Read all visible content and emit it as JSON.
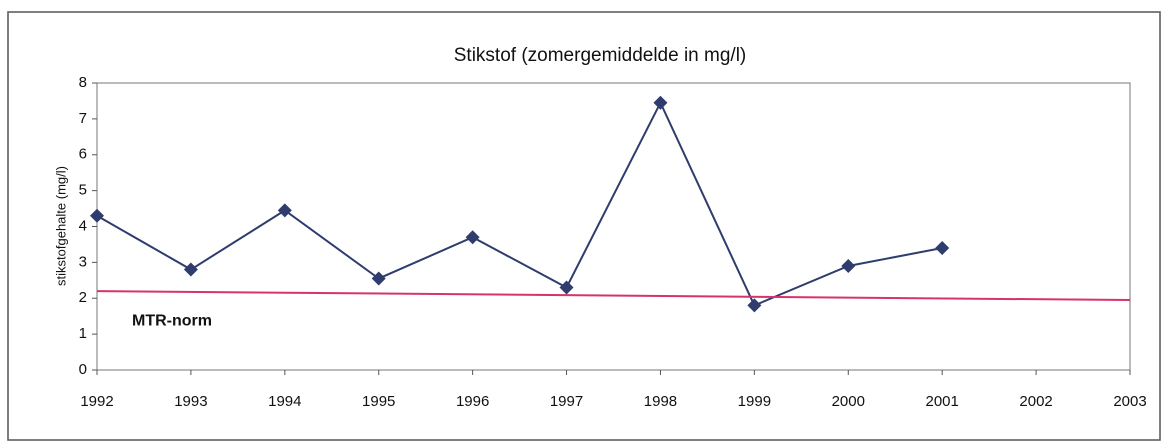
{
  "chart_data": {
    "type": "line",
    "title": "Stikstof (zomergemiddelde in mg/l)",
    "y_label": "stikstofgehalte (mg/l)",
    "x": [
      1992,
      1993,
      1994,
      1995,
      1996,
      1997,
      1998,
      1999,
      2000,
      2001
    ],
    "series": [
      {
        "name": "Stikstof",
        "color": "#2f3c6e",
        "values": [
          4.3,
          2.8,
          4.45,
          2.55,
          3.7,
          2.3,
          7.45,
          1.8,
          2.9,
          3.4
        ]
      },
      {
        "name": "MTR-norm",
        "color": "#d6336c",
        "x": [
          1992,
          2003
        ],
        "values": [
          2.2,
          1.95
        ]
      }
    ],
    "xlim": [
      1992,
      2003
    ],
    "xticks": [
      1992,
      1993,
      1994,
      1995,
      1996,
      1997,
      1998,
      1999,
      2000,
      2001,
      2002,
      2003
    ],
    "ylim": [
      0,
      8
    ],
    "yticks": [
      0,
      1,
      2,
      3,
      4,
      5,
      6,
      7,
      8
    ]
  }
}
